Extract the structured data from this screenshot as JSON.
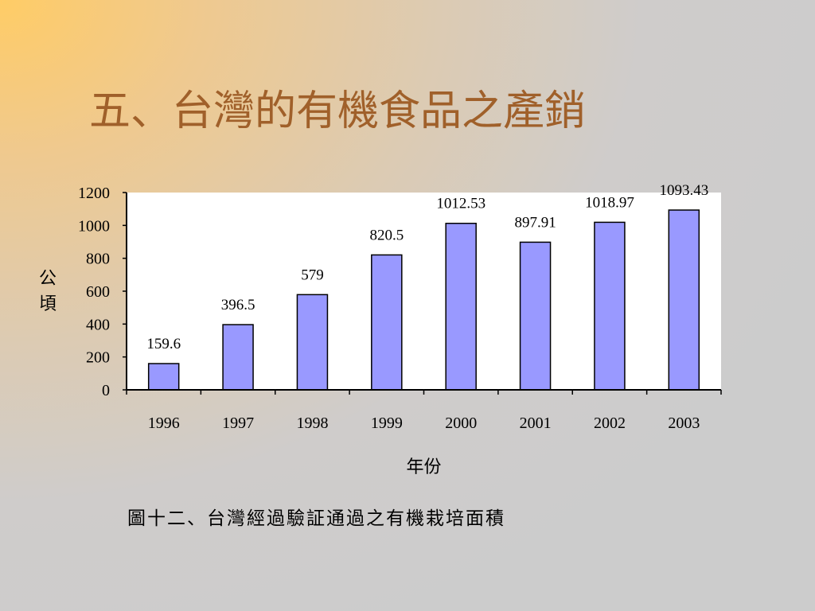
{
  "slide": {
    "title": "五、台灣的有機食品之產銷",
    "caption": "圖十二、台灣經過驗証通過之有機栽培面積"
  },
  "chart_data": {
    "type": "bar",
    "categories": [
      "1996",
      "1997",
      "1998",
      "1999",
      "2000",
      "2001",
      "2002",
      "2003"
    ],
    "values": [
      159.6,
      396.5,
      579,
      820.5,
      1012.53,
      897.91,
      1018.97,
      1093.43
    ],
    "data_labels": [
      "159.6",
      "396.5",
      "579",
      "820.5",
      "1012.53",
      "897.91",
      "1018.97",
      "1093.43"
    ],
    "ylabel": "公頃",
    "xlabel": "年份",
    "ylim": [
      0,
      1200
    ],
    "yticks": [
      0,
      200,
      400,
      600,
      800,
      1000,
      1200
    ],
    "grid": false,
    "legend": false,
    "colors": {
      "bar_fill": "#9999ff",
      "bar_stroke": "#000000",
      "plot_background": "#ffffff"
    }
  }
}
